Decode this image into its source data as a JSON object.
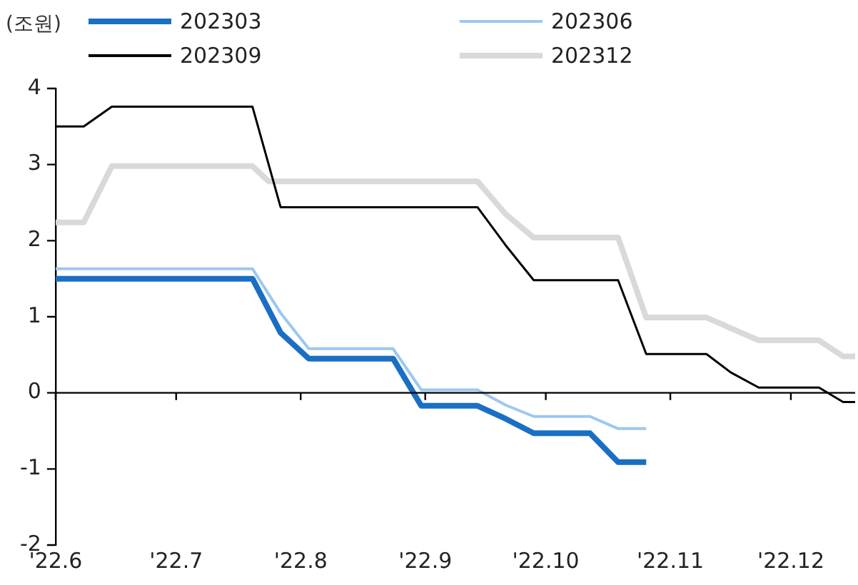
{
  "chart_data": {
    "type": "line",
    "ylabel": "(조원)",
    "legend": "top",
    "grid": false,
    "marker": "none",
    "line_style": "solid",
    "xlim": [
      "2022-06-01",
      "2022-12-17"
    ],
    "xticks": [
      {
        "value": "2022-06-01",
        "label": "'22.6"
      },
      {
        "value": "2022-07-01",
        "label": "'22.7"
      },
      {
        "value": "2022-08-01",
        "label": "'22.8"
      },
      {
        "value": "2022-09-01",
        "label": "'22.9"
      },
      {
        "value": "2022-10-01",
        "label": "'22.10"
      },
      {
        "value": "2022-11-01",
        "label": "'22.11"
      },
      {
        "value": "2022-12-01",
        "label": "'22.12"
      }
    ],
    "ref_lines": [
      {
        "axis": "y",
        "value": 0,
        "color": "#000000",
        "line_style": "solid"
      }
    ],
    "ylim": [
      -2,
      4
    ],
    "yticks": [
      -2,
      -1,
      0,
      1,
      2,
      3,
      4
    ],
    "series": [
      {
        "name": "202303",
        "color": "#1a6fc4",
        "x": [
          "2022-06-01",
          "2022-07-20",
          "2022-07-27",
          "2022-08-03",
          "2022-08-24",
          "2022-08-31",
          "2022-09-14",
          "2022-09-21",
          "2022-09-28",
          "2022-10-12",
          "2022-10-19",
          "2022-10-26"
        ],
        "values": [
          1.5,
          1.5,
          0.79,
          0.45,
          0.45,
          -0.17,
          -0.17,
          -0.34,
          -0.53,
          -0.53,
          -0.91,
          -0.91
        ]
      },
      {
        "name": "202306",
        "color": "#9cc8f0",
        "x": [
          "2022-06-01",
          "2022-07-20",
          "2022-07-27",
          "2022-08-03",
          "2022-08-24",
          "2022-08-31",
          "2022-09-14",
          "2022-09-21",
          "2022-09-28",
          "2022-10-12",
          "2022-10-19",
          "2022-10-26"
        ],
        "values": [
          1.63,
          1.63,
          1.05,
          0.58,
          0.58,
          0.04,
          0.04,
          -0.16,
          -0.31,
          -0.31,
          -0.47,
          -0.47
        ]
      },
      {
        "name": "202309",
        "color": "#000000",
        "x": [
          "2022-06-01",
          "2022-06-08",
          "2022-06-15",
          "2022-07-20",
          "2022-07-27",
          "2022-09-14",
          "2022-09-21",
          "2022-09-28",
          "2022-10-19",
          "2022-10-26",
          "2022-11-10",
          "2022-11-16",
          "2022-11-23",
          "2022-12-08",
          "2022-12-14",
          "2022-12-17"
        ],
        "values": [
          3.5,
          3.5,
          3.76,
          3.76,
          2.44,
          2.44,
          1.94,
          1.48,
          1.48,
          0.51,
          0.51,
          0.27,
          0.07,
          0.07,
          -0.12,
          -0.12
        ]
      },
      {
        "name": "202312",
        "color": "#d9d9d9",
        "x": [
          "2022-06-01",
          "2022-06-08",
          "2022-06-15",
          "2022-07-20",
          "2022-07-24",
          "2022-09-14",
          "2022-09-21",
          "2022-09-28",
          "2022-10-19",
          "2022-10-26",
          "2022-11-10",
          "2022-11-23",
          "2022-12-08",
          "2022-12-14",
          "2022-12-17"
        ],
        "values": [
          2.24,
          2.24,
          2.98,
          2.98,
          2.78,
          2.78,
          2.35,
          2.04,
          2.04,
          0.99,
          0.99,
          0.69,
          0.69,
          0.48,
          0.48
        ]
      }
    ]
  }
}
